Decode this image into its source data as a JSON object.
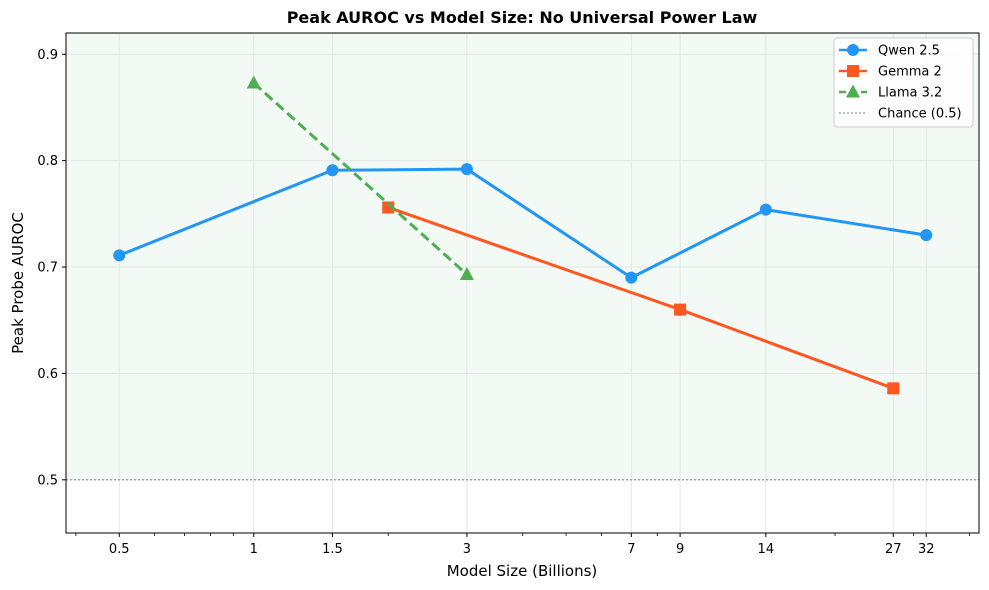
{
  "chart_data": {
    "type": "line",
    "title": "Peak AUROC vs Model Size: No Universal Power Law",
    "xlabel": "Model Size (Billions)",
    "ylabel": "Peak Probe AUROC",
    "xscale": "log",
    "xlim": [
      0.38,
      42
    ],
    "ylim": [
      0.45,
      0.92
    ],
    "x_ticks": [
      0.5,
      1,
      1.5,
      3,
      7,
      9,
      14,
      27,
      32
    ],
    "x_tick_labels": [
      "0.5",
      "1",
      "1.5",
      "3",
      "7",
      "9",
      "14",
      "27",
      "32"
    ],
    "y_ticks": [
      0.5,
      0.6,
      0.7,
      0.8,
      0.9
    ],
    "y_tick_labels": [
      "0.5",
      "0.6",
      "0.7",
      "0.8",
      "0.9"
    ],
    "grid": true,
    "legend_position": "top-right",
    "above_chance_shading": {
      "from": 0.5,
      "to": 0.92,
      "color": "#f3f9f4"
    },
    "series": [
      {
        "name": "Qwen 2.5",
        "color": "#2196f3",
        "marker": "circle",
        "linestyle": "solid",
        "x": [
          0.5,
          1.5,
          3,
          7,
          14,
          32
        ],
        "y": [
          0.711,
          0.791,
          0.792,
          0.69,
          0.754,
          0.73
        ]
      },
      {
        "name": "Gemma 2",
        "color": "#ff5722",
        "marker": "square",
        "linestyle": "solid",
        "x": [
          2,
          9,
          27
        ],
        "y": [
          0.756,
          0.66,
          0.586
        ]
      },
      {
        "name": "Llama 3.2",
        "color": "#4caf50",
        "marker": "triangle",
        "linestyle": "dashed",
        "x": [
          1,
          3
        ],
        "y": [
          0.873,
          0.693
        ]
      }
    ],
    "reference_line": {
      "name": "Chance (0.5)",
      "y": 0.5,
      "color": "#aaaaaa",
      "linestyle": "dotted"
    }
  }
}
